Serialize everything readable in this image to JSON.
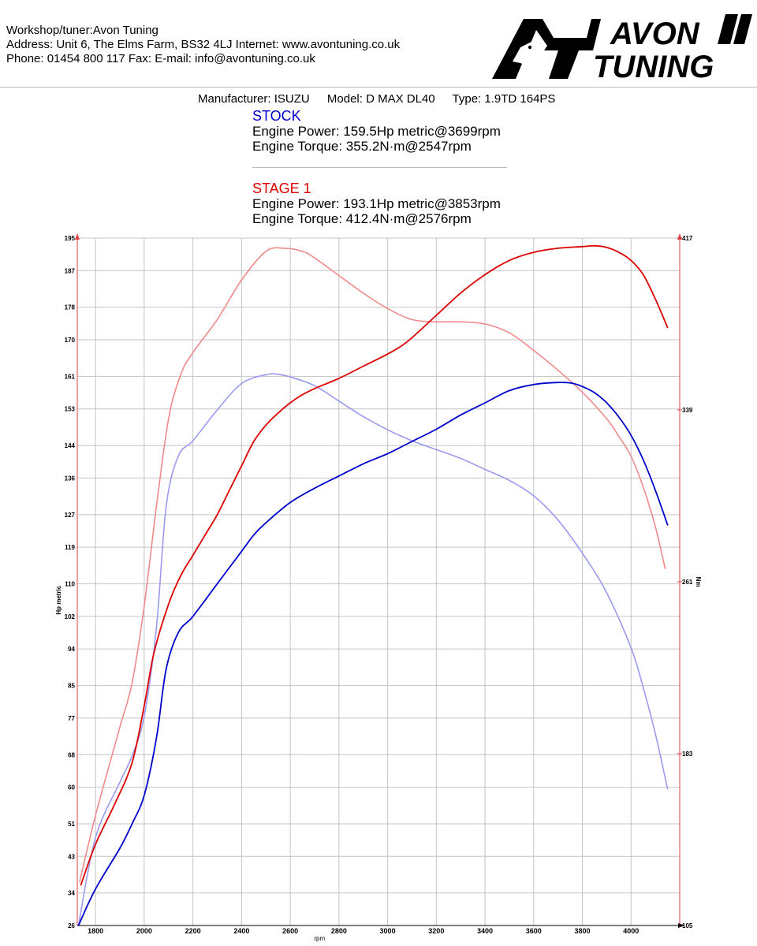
{
  "header": {
    "workshop": "Workshop/tuner:Avon Tuning",
    "address": "Address: Unit 6, The Elms Farm, BS32 4LJ Internet: www.avontuning.co.uk",
    "phone": "Phone: 01454 800 117 Fax:  E-mail: info@avontuning.co.uk",
    "logo_line1": "AVON",
    "logo_line2": "TUNING"
  },
  "vehicle": {
    "manufacturer": "Manufacturer: ISUZU",
    "model": "Model: D MAX DL40",
    "type": "Type: 1.9TD 164PS"
  },
  "stock": {
    "title": "STOCK",
    "power": "Engine Power: 159.5Hp metric@3699rpm",
    "torque": "Engine Torque: 355.2N·m@2547rpm"
  },
  "stage1": {
    "title": "STAGE 1",
    "power": "Engine Power: 193.1Hp metric@3853rpm",
    "torque": "Engine Torque: 412.4N·m@2576rpm"
  },
  "colors": {
    "stock": "#0000cc",
    "stage1": "#dd0000",
    "stock_torque": "#9a9af0",
    "stage1_torque": "#f08a8a",
    "grid": "#c4c4c4"
  },
  "chart_data": {
    "type": "line",
    "xlabel": "rpm",
    "ylabel": "Hp metric",
    "y2label": "Nm",
    "xlim": [
      1725,
      4200
    ],
    "ylim": [
      26,
      195
    ],
    "y2lim": [
      105,
      417
    ],
    "x_ticks": [
      "1800",
      "2000",
      "2200",
      "2400",
      "2600",
      "2800",
      "3000",
      "3200",
      "3400",
      "3600",
      "3800",
      "4000"
    ],
    "y_ticks": [
      "26",
      "34",
      "43",
      "51",
      "60",
      "68",
      "77",
      "85",
      "94",
      "102",
      "110",
      "119",
      "127",
      "136",
      "144",
      "153",
      "161",
      "170",
      "178",
      "187",
      "195"
    ],
    "y2_ticks": [
      "105",
      "183",
      "261",
      "339",
      "417"
    ],
    "series": [
      {
        "name": "STAGE 1 power",
        "axis": "left",
        "color": "#dd0000",
        "width": 1.8,
        "x": [
          1740,
          1800,
          1880,
          1950,
          2000,
          2040,
          2100,
          2150,
          2200,
          2250,
          2300,
          2350,
          2400,
          2450,
          2500,
          2550,
          2600,
          2650,
          2700,
          2800,
          2900,
          3000,
          3080,
          3200,
          3300,
          3400,
          3500,
          3600,
          3700,
          3800,
          3853,
          3900,
          3950,
          4000,
          4050,
          4100,
          4150
        ],
        "y": [
          36,
          46,
          56,
          66,
          80,
          93,
          105,
          112,
          117,
          122,
          127,
          133,
          139,
          145,
          149,
          152,
          154.5,
          156.5,
          158,
          160.5,
          163.5,
          166.5,
          169.5,
          176,
          181.5,
          186,
          189.5,
          191.5,
          192.5,
          192.9,
          193.1,
          192.7,
          191.5,
          189.5,
          186,
          180,
          173
        ]
      },
      {
        "name": "STOCK power",
        "axis": "left",
        "color": "#0000cc",
        "width": 1.8,
        "x": [
          1730,
          1800,
          1900,
          1950,
          2000,
          2050,
          2090,
          2140,
          2200,
          2300,
          2400,
          2450,
          2500,
          2600,
          2700,
          2800,
          2900,
          3000,
          3100,
          3200,
          3300,
          3400,
          3500,
          3600,
          3699,
          3760,
          3800,
          3850,
          3900,
          3950,
          4000,
          4050,
          4100,
          4150
        ],
        "y": [
          26,
          35,
          45,
          51,
          58,
          72,
          89,
          98,
          102,
          110,
          118,
          122,
          125,
          130,
          133.5,
          136.5,
          139.5,
          142,
          145,
          148,
          151.5,
          154.5,
          157.5,
          159,
          159.5,
          159.3,
          158.5,
          157,
          154.5,
          151,
          146.5,
          140.5,
          133,
          124.5
        ]
      },
      {
        "name": "STAGE 1 torque",
        "axis": "right",
        "color": "#f08a8a",
        "width": 1.6,
        "x": [
          1735,
          1800,
          1900,
          1950,
          2000,
          2050,
          2100,
          2150,
          2200,
          2300,
          2400,
          2500,
          2576,
          2650,
          2700,
          2800,
          2900,
          3000,
          3100,
          3200,
          3300,
          3400,
          3500,
          3600,
          3700,
          3800,
          3900,
          3950,
          4000,
          4050,
          4100,
          4140
        ],
        "y": [
          125,
          155,
          195,
          215,
          250,
          295,
          335,
          355,
          365,
          380,
          398,
          411,
          412.4,
          411,
          408,
          400,
          392,
          385,
          380,
          379,
          379,
          378,
          374,
          366,
          357,
          347,
          335,
          327,
          318,
          304,
          286,
          267
        ]
      },
      {
        "name": "STOCK torque",
        "axis": "right",
        "color": "#9a9af0",
        "width": 1.6,
        "x": [
          1730,
          1800,
          1900,
          1950,
          2000,
          2050,
          2090,
          2140,
          2200,
          2300,
          2400,
          2500,
          2547,
          2600,
          2700,
          2800,
          2900,
          3000,
          3100,
          3200,
          3300,
          3400,
          3500,
          3600,
          3700,
          3800,
          3900,
          4000,
          4050,
          4100,
          4150
        ],
        "y": [
          105,
          145,
          170,
          182,
          200,
          240,
          295,
          318,
          325,
          339,
          351,
          355,
          355.2,
          354,
          350,
          343,
          336,
          330,
          325,
          321,
          317,
          312,
          307,
          300,
          289,
          274,
          256,
          231,
          213,
          192,
          167
        ]
      }
    ]
  }
}
